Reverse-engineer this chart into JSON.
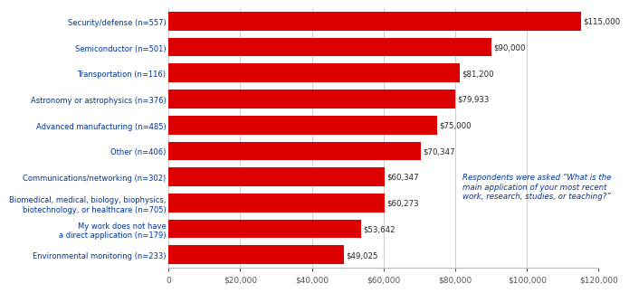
{
  "categories": [
    "Environmental monitoring (n=233)",
    "My work does not have\na direct application (n=179)",
    "Biomedical, medical, biology, biophysics,\nbiotechnology, or healthcare (n=705)",
    "Communications/networking (n=302)",
    "Other (n=406)",
    "Advanced manufacturing (n=485)",
    "Astronomy or astrophysics (n=376)",
    "Transportation (n=116)",
    "Semiconductor (n=501)",
    "Security/defense (n=557)"
  ],
  "values": [
    49025,
    53642,
    60273,
    60347,
    70347,
    75000,
    79933,
    81200,
    90000,
    115000
  ],
  "labels": [
    "$49,025",
    "$53,642",
    "$60,273",
    "$60,347",
    "$70,347",
    "$75,000",
    "$79,933",
    "$81,200",
    "$90,000",
    "$115,000"
  ],
  "bar_color": "#DD0000",
  "xlim": [
    0,
    120000
  ],
  "xticks": [
    0,
    20000,
    40000,
    60000,
    80000,
    100000,
    120000
  ],
  "xtick_labels": [
    "0",
    "$20,000",
    "$40,000",
    "$60,000",
    "$80,000",
    "$100,000",
    "$120,000"
  ],
  "annotation_text": "Respondents were asked “What is the\nmain application of your most recent\nwork, research, studies, or teaching?”",
  "bar_height": 0.72,
  "bg_color": "#FFFFFF",
  "grid_color": "#BBBBBB",
  "label_color": "#222222",
  "tick_label_color": "#555555",
  "ytick_color": "#003399",
  "annotation_color": "#003399",
  "ytick_fontsize": 6.0,
  "xtick_fontsize": 6.5,
  "label_fontsize": 6.2,
  "annotation_fontsize": 6.2
}
